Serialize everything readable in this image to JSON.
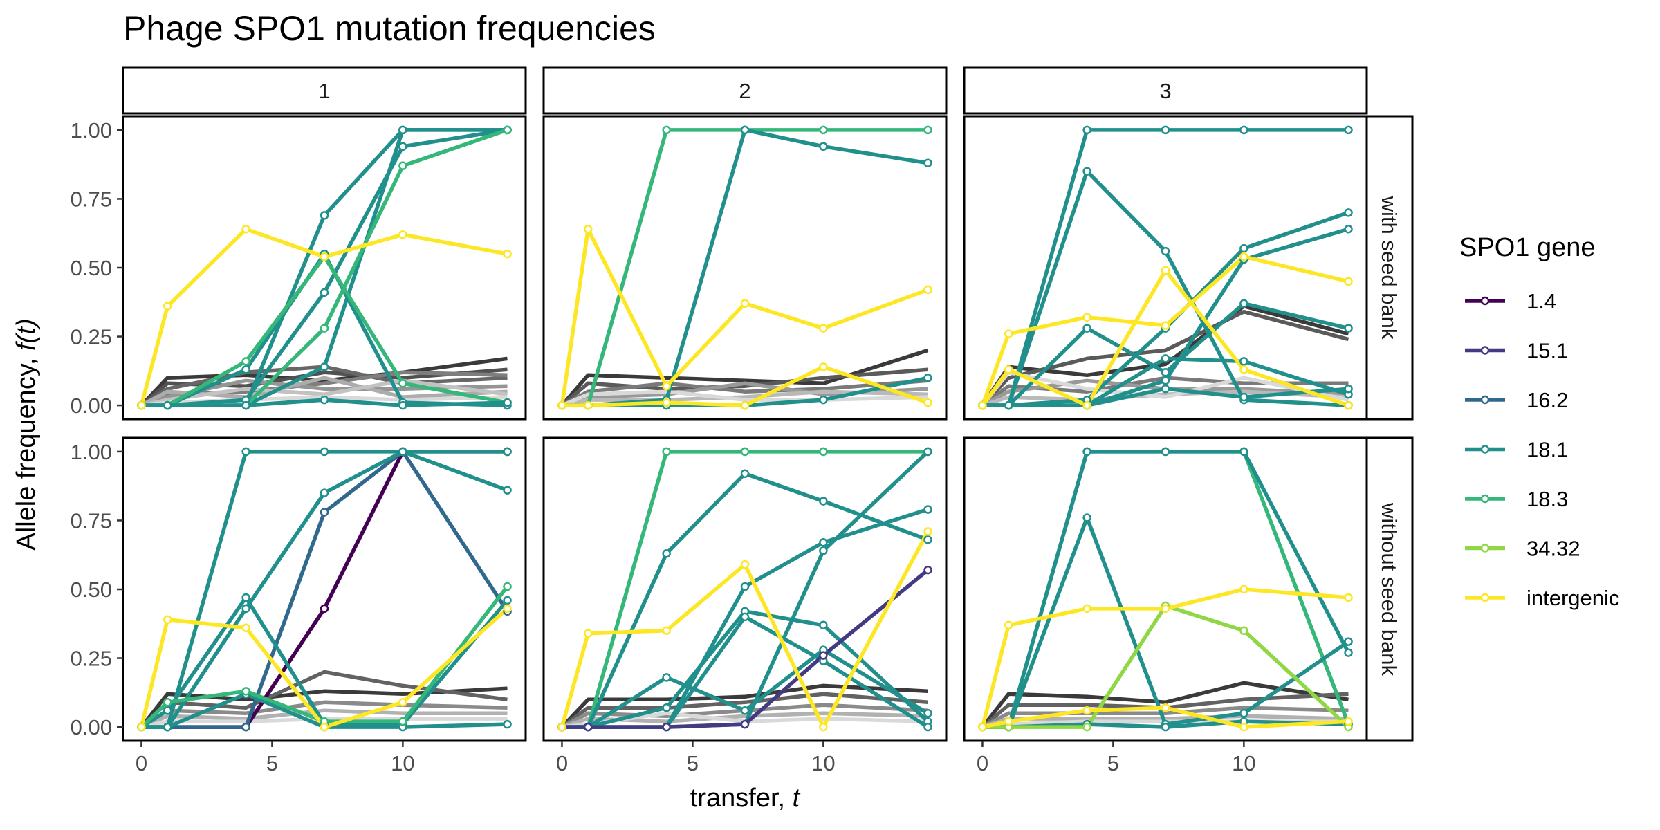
{
  "chart_data": {
    "type": "line",
    "title": "Phage SPO1 mutation frequencies",
    "xlabel": {
      "text": "transfer, ",
      "italic": "t"
    },
    "ylabel": {
      "text": "Allele frequency, ",
      "italic": "f(t)"
    },
    "xlim": [
      -0.7,
      14.7
    ],
    "ylim": [
      -0.05,
      1.05
    ],
    "x_ticks": [
      0,
      5,
      10
    ],
    "y_ticks": [
      0,
      0.25,
      0.5,
      0.75,
      1.0
    ],
    "y_tick_labels": [
      "0.00",
      "0.25",
      "0.50",
      "0.75",
      "1.00"
    ],
    "columns": [
      "1",
      "2",
      "3"
    ],
    "rows": [
      "with seed bank",
      "without seed bank"
    ],
    "legend": {
      "title": "SPO1 gene",
      "placement": "right",
      "entries": [
        {
          "label": "1.4",
          "color": "#440154"
        },
        {
          "label": "15.1",
          "color": "#443983"
        },
        {
          "label": "16.2",
          "color": "#31688E"
        },
        {
          "label": "18.1",
          "color": "#21908C"
        },
        {
          "label": "18.3",
          "color": "#35B779"
        },
        {
          "label": "34.32",
          "color": "#8FD744"
        },
        {
          "label": "intergenic",
          "color": "#FDE725"
        }
      ]
    },
    "x": [
      0,
      1,
      4,
      7,
      10,
      14
    ],
    "background_series_color_range": [
      "#3a3a3a",
      "#d9d9d9"
    ],
    "panels": [
      {
        "row": "with seed bank",
        "column": "1",
        "series": [
          {
            "gene": "18.1",
            "values": [
              0,
              0,
              0,
              0.69,
              1.0,
              1.0
            ]
          },
          {
            "gene": "18.1",
            "values": [
              0,
              0,
              0.02,
              0.41,
              0.94,
              1.0
            ]
          },
          {
            "gene": "18.1",
            "values": [
              0,
              0,
              0.13,
              0.55,
              0.01,
              0.0
            ]
          },
          {
            "gene": "18.1",
            "values": [
              0,
              0,
              0.0,
              0.14,
              1.0,
              1.0
            ]
          },
          {
            "gene": "18.3",
            "values": [
              0,
              0,
              0.0,
              0.28,
              0.87,
              1.0
            ]
          },
          {
            "gene": "18.3",
            "values": [
              0,
              0,
              0.16,
              0.54,
              0.08,
              0.01
            ]
          },
          {
            "gene": "18.1",
            "values": [
              0,
              0,
              0.0,
              0.02,
              0.0,
              0.01
            ]
          },
          {
            "gene": "intergenic",
            "values": [
              0,
              0.36,
              0.64,
              0.54,
              0.62,
              0.55
            ]
          }
        ],
        "background_series": [
          [
            0,
            0.1,
            0.11,
            0.09,
            0.12,
            0.17
          ],
          [
            0,
            0.08,
            0.07,
            0.12,
            0.1,
            0.13
          ],
          [
            0,
            0.06,
            0.12,
            0.14,
            0.08,
            0.1
          ],
          [
            0,
            0.04,
            0.05,
            0.08,
            0.12,
            0.11
          ],
          [
            0,
            0.03,
            0.09,
            0.06,
            0.06,
            0.07
          ],
          [
            0,
            0.05,
            0.03,
            0.1,
            0.03,
            0.05
          ],
          [
            0,
            0.02,
            0.06,
            0.04,
            0.09,
            0.04
          ],
          [
            0,
            0.01,
            0.02,
            0.03,
            0.02,
            0.03
          ]
        ]
      },
      {
        "row": "with seed bank",
        "column": "2",
        "series": [
          {
            "gene": "18.3",
            "values": [
              0,
              0,
              1.0,
              1.0,
              1.0,
              1.0
            ]
          },
          {
            "gene": "18.1",
            "values": [
              0,
              0,
              0.02,
              1.0,
              0.94,
              0.88
            ]
          },
          {
            "gene": "18.1",
            "values": [
              0,
              0,
              0.0,
              0.0,
              0.02,
              0.1
            ]
          },
          {
            "gene": "intergenic",
            "values": [
              0,
              0.64,
              0.07,
              0.37,
              0.28,
              0.42
            ]
          },
          {
            "gene": "intergenic",
            "values": [
              0,
              0,
              0.01,
              0.0,
              0.14,
              0.01
            ]
          }
        ],
        "background_series": [
          [
            0,
            0.11,
            0.1,
            0.09,
            0.08,
            0.2
          ],
          [
            0,
            0.08,
            0.06,
            0.07,
            0.1,
            0.13
          ],
          [
            0,
            0.05,
            0.08,
            0.05,
            0.06,
            0.09
          ],
          [
            0,
            0.03,
            0.04,
            0.08,
            0.04,
            0.06
          ],
          [
            0,
            0.02,
            0.02,
            0.03,
            0.05,
            0.04
          ],
          [
            0,
            0.04,
            0.05,
            0.02,
            0.02,
            0.03
          ]
        ]
      },
      {
        "row": "with seed bank",
        "column": "3",
        "series": [
          {
            "gene": "18.1",
            "values": [
              0,
              0,
              1.0,
              1.0,
              1.0,
              1.0
            ]
          },
          {
            "gene": "18.1",
            "values": [
              0,
              0,
              0.85,
              0.56,
              0.02,
              0.0
            ]
          },
          {
            "gene": "18.1",
            "values": [
              0,
              0,
              0.02,
              0.28,
              0.57,
              0.7
            ]
          },
          {
            "gene": "18.1",
            "values": [
              0,
              0,
              0.0,
              0.09,
              0.53,
              0.64
            ]
          },
          {
            "gene": "18.1",
            "values": [
              0,
              0,
              0.28,
              0.12,
              0.37,
              0.28
            ]
          },
          {
            "gene": "18.1",
            "values": [
              0,
              0,
              0.0,
              0.17,
              0.16,
              0.04
            ]
          },
          {
            "gene": "18.1",
            "values": [
              0,
              0,
              0.0,
              0.06,
              0.03,
              0.06
            ]
          },
          {
            "gene": "intergenic",
            "values": [
              0,
              0.26,
              0.32,
              0.29,
              0.54,
              0.45
            ]
          },
          {
            "gene": "intergenic",
            "values": [
              0,
              0.13,
              0.0,
              0.49,
              0.13,
              0.0
            ]
          }
        ],
        "background_series": [
          [
            0,
            0.14,
            0.11,
            0.15,
            0.36,
            0.26
          ],
          [
            0,
            0.1,
            0.17,
            0.2,
            0.34,
            0.24
          ],
          [
            0,
            0.07,
            0.05,
            0.1,
            0.08,
            0.08
          ],
          [
            0,
            0.05,
            0.09,
            0.06,
            0.06,
            0.04
          ],
          [
            0,
            0.03,
            0.02,
            0.04,
            0.05,
            0.03
          ],
          [
            0,
            0.12,
            0.06,
            0.03,
            0.1,
            0.02
          ]
        ]
      },
      {
        "row": "without seed bank",
        "column": "1",
        "series": [
          {
            "gene": "1.4",
            "values": [
              0,
              0,
              0.0,
              0.43,
              1.0,
              1.0
            ]
          },
          {
            "gene": "16.2",
            "values": [
              0,
              0,
              0.0,
              0.78,
              1.0,
              0.42
            ]
          },
          {
            "gene": "18.1",
            "values": [
              0,
              0,
              1.0,
              1.0,
              1.0,
              0.86
            ]
          },
          {
            "gene": "18.1",
            "values": [
              0,
              0.06,
              0.47,
              0.01,
              0.01,
              0.46
            ]
          },
          {
            "gene": "18.1",
            "values": [
              0,
              0,
              0.43,
              0.85,
              1.0,
              1.0
            ]
          },
          {
            "gene": "18.1",
            "values": [
              0,
              0,
              0.12,
              0.0,
              0.0,
              0.01
            ]
          },
          {
            "gene": "18.3",
            "values": [
              0,
              0.09,
              0.13,
              0.02,
              0.02,
              0.51
            ]
          },
          {
            "gene": "intergenic",
            "values": [
              0,
              0.39,
              0.36,
              0.0,
              0.09,
              0.43
            ]
          }
        ],
        "background_series": [
          [
            0,
            0.12,
            0.1,
            0.13,
            0.12,
            0.14
          ],
          [
            0,
            0.09,
            0.07,
            0.2,
            0.15,
            0.1
          ],
          [
            0,
            0.06,
            0.05,
            0.09,
            0.08,
            0.07
          ],
          [
            0,
            0.04,
            0.03,
            0.06,
            0.05,
            0.05
          ],
          [
            0,
            0.02,
            0.02,
            0.03,
            0.03,
            0.03
          ]
        ]
      },
      {
        "row": "without seed bank",
        "column": "2",
        "series": [
          {
            "gene": "18.3",
            "values": [
              0,
              0,
              1.0,
              1.0,
              1.0,
              1.0
            ]
          },
          {
            "gene": "18.1",
            "values": [
              0,
              0,
              0.63,
              0.92,
              0.82,
              0.68
            ]
          },
          {
            "gene": "18.1",
            "values": [
              0,
              0,
              0.0,
              0.51,
              0.67,
              0.79
            ]
          },
          {
            "gene": "18.1",
            "values": [
              0,
              0,
              0.0,
              0.01,
              0.64,
              1.0
            ]
          },
          {
            "gene": "18.1",
            "values": [
              0,
              0,
              0.18,
              0.06,
              0.28,
              0.05
            ]
          },
          {
            "gene": "18.1",
            "values": [
              0,
              0,
              0.07,
              0.42,
              0.37,
              0.02
            ]
          },
          {
            "gene": "18.1",
            "values": [
              0,
              0,
              0.0,
              0.4,
              0.24,
              0.0
            ]
          },
          {
            "gene": "15.1",
            "values": [
              0,
              0,
              0.0,
              0.01,
              0.26,
              0.57
            ]
          },
          {
            "gene": "intergenic",
            "values": [
              0,
              0.34,
              0.35,
              0.59,
              0.0,
              0.71
            ]
          }
        ],
        "background_series": [
          [
            0,
            0.1,
            0.1,
            0.11,
            0.15,
            0.13
          ],
          [
            0,
            0.07,
            0.07,
            0.09,
            0.12,
            0.09
          ],
          [
            0,
            0.05,
            0.04,
            0.06,
            0.08,
            0.06
          ],
          [
            0,
            0.03,
            0.02,
            0.04,
            0.05,
            0.04
          ],
          [
            0,
            0.01,
            0.05,
            0.02,
            0.03,
            0.02
          ]
        ]
      },
      {
        "row": "without seed bank",
        "column": "3",
        "series": [
          {
            "gene": "18.3",
            "values": [
              0,
              0,
              1.0,
              1.0,
              1.0,
              0.01
            ]
          },
          {
            "gene": "18.1",
            "values": [
              0,
              0,
              1.0,
              1.0,
              1.0,
              0.27
            ]
          },
          {
            "gene": "18.1",
            "values": [
              0,
              0,
              0.76,
              0.01,
              0.05,
              0.31
            ]
          },
          {
            "gene": "18.1",
            "values": [
              0,
              0,
              0.01,
              0.0,
              0.02,
              0.01
            ]
          },
          {
            "gene": "34.32",
            "values": [
              0,
              0,
              0.0,
              0.44,
              0.35,
              0.0
            ]
          },
          {
            "gene": "intergenic",
            "values": [
              0,
              0.37,
              0.43,
              0.43,
              0.5,
              0.47
            ]
          },
          {
            "gene": "intergenic",
            "values": [
              0,
              0.02,
              0.06,
              0.07,
              0.0,
              0.02
            ]
          }
        ],
        "background_series": [
          [
            0,
            0.12,
            0.11,
            0.09,
            0.16,
            0.1
          ],
          [
            0,
            0.08,
            0.08,
            0.07,
            0.1,
            0.12
          ],
          [
            0,
            0.05,
            0.05,
            0.05,
            0.07,
            0.06
          ],
          [
            0,
            0.03,
            0.03,
            0.03,
            0.04,
            0.03
          ],
          [
            0,
            0.01,
            0.02,
            0.02,
            0.02,
            0.02
          ]
        ]
      }
    ]
  }
}
